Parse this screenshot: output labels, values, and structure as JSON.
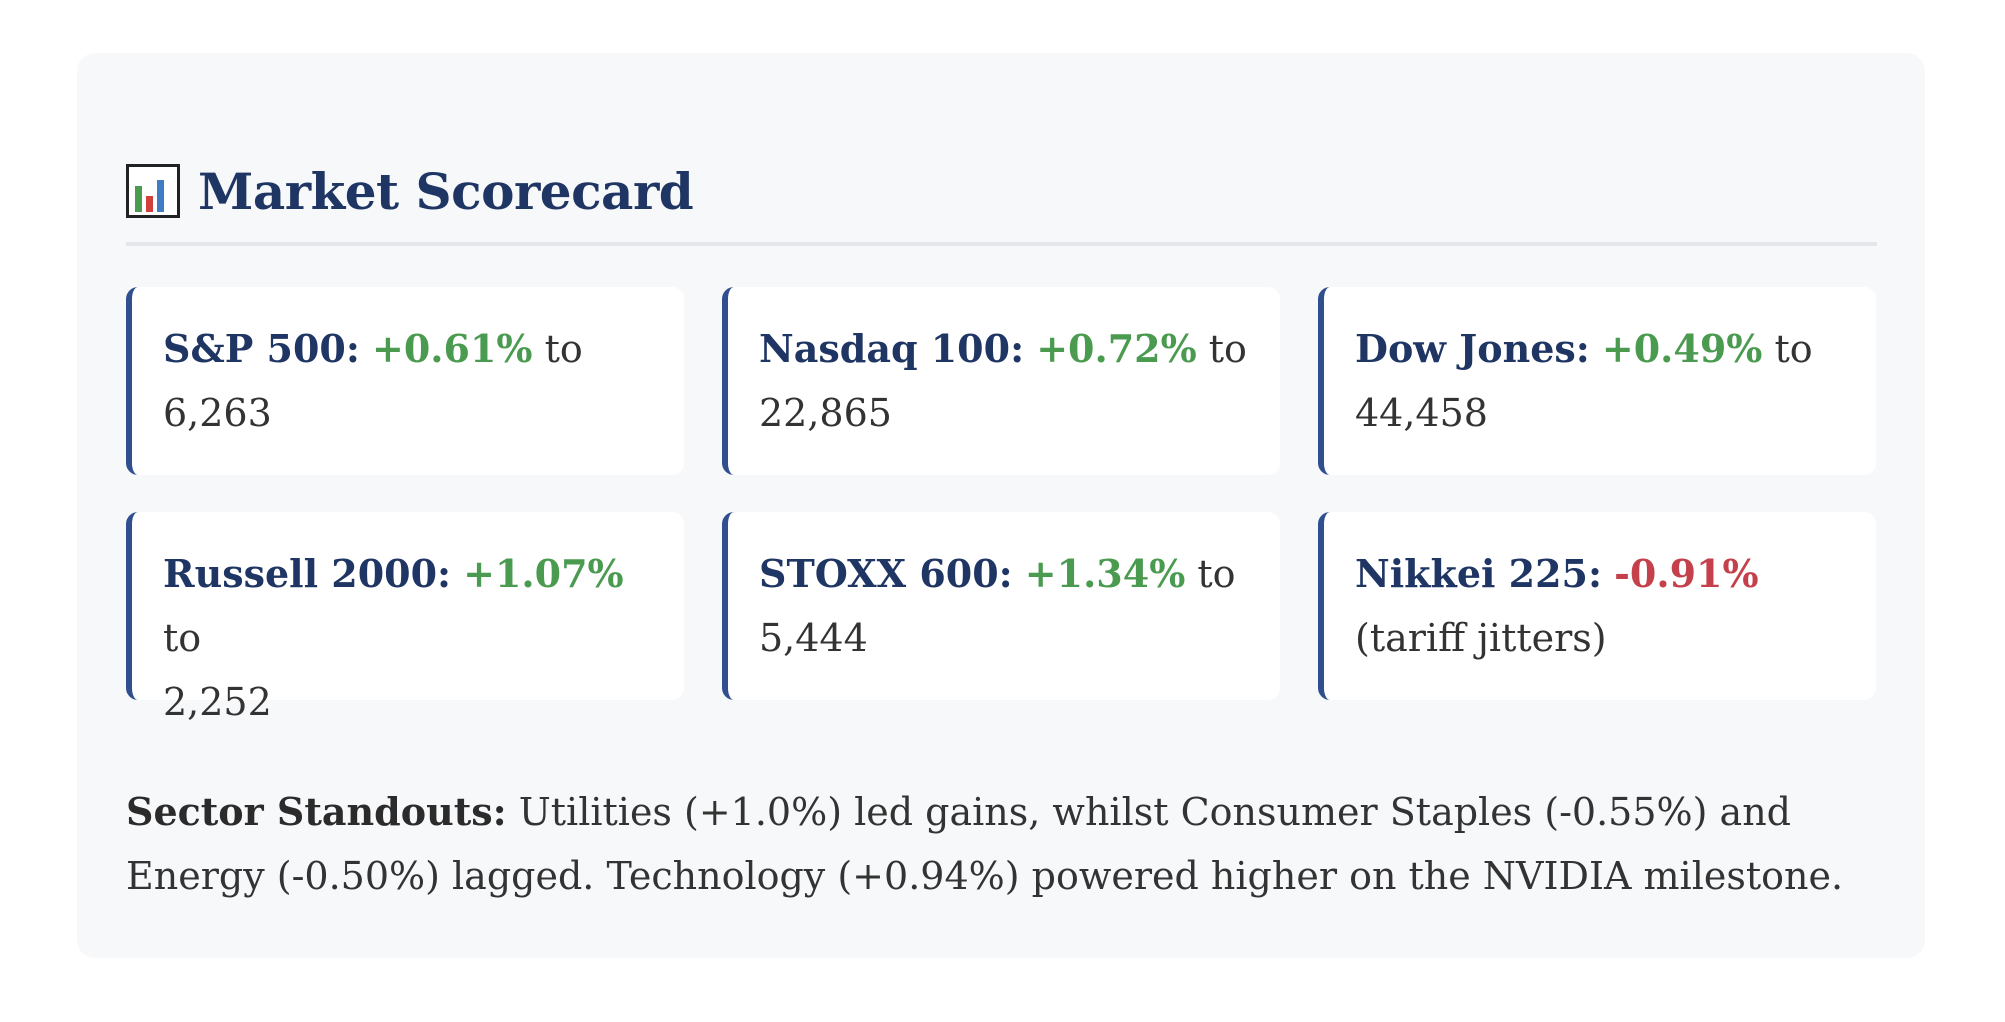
{
  "header": {
    "icon": "bar-chart-icon",
    "title": "Market Scorecard"
  },
  "colors": {
    "title": "#1f3564",
    "positive": "#4a9b50",
    "negative": "#c4404a",
    "card_accent": "#2f4f8f",
    "panel_background": "#f7f8fa"
  },
  "indices": [
    {
      "name": "S&P 500:",
      "change": "+0.61%",
      "connector": " to",
      "detail": "6,263",
      "direction": "up"
    },
    {
      "name": "Nasdaq 100:",
      "change": "+0.72%",
      "connector": " to",
      "detail": "22,865",
      "direction": "up"
    },
    {
      "name": "Dow Jones:",
      "change": "+0.49%",
      "connector": " to",
      "detail": "44,458",
      "direction": "up"
    },
    {
      "name": "Russell 2000:",
      "change": "+1.07%",
      "connector": " to",
      "detail": "2,252",
      "direction": "up"
    },
    {
      "name": "STOXX 600:",
      "change": "+1.34%",
      "connector": " to",
      "detail": "5,444",
      "direction": "up"
    },
    {
      "name": "Nikkei 225:",
      "change": "-0.91%",
      "connector": "",
      "detail": "(tariff jitters)",
      "direction": "down"
    }
  ],
  "summary": {
    "lead": "Sector Standouts:",
    "text": "Utilities (+1.0%) led gains, whilst Consumer Staples (-0.55%) and Energy (-0.50%) lagged. Technology (+0.94%) powered higher on the NVIDIA milestone."
  }
}
